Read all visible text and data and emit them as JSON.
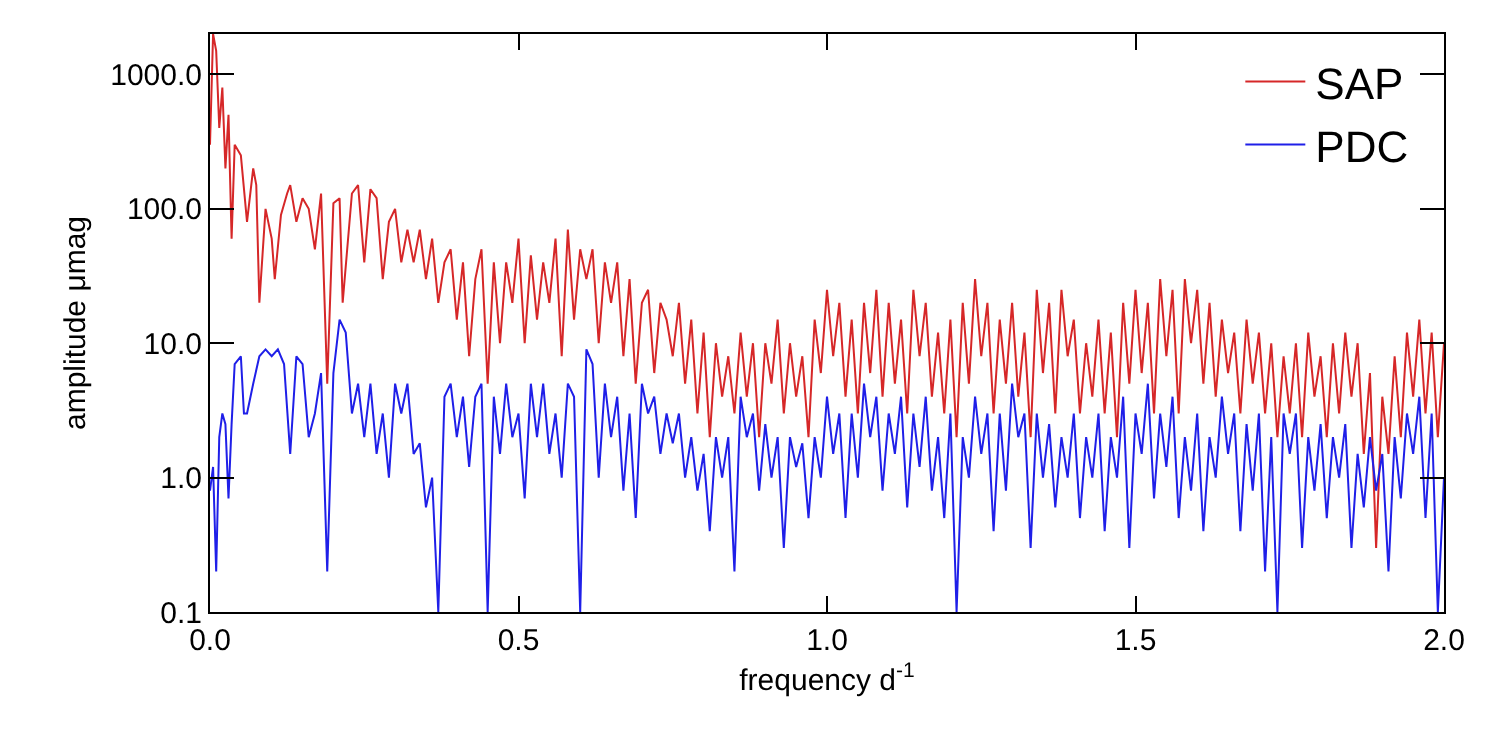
{
  "chart_data": {
    "type": "line",
    "xlabel": "frequency d$^{-1}$",
    "ylabel": "amplitude μmag",
    "log": "y",
    "grid": false,
    "legend": "top right",
    "marker": "none",
    "line_style": "solid",
    "xlim": [
      0,
      2
    ],
    "xticks": [
      {
        "value": 0,
        "label": "0.0"
      },
      {
        "value": 0.5,
        "label": "0.5"
      },
      {
        "value": 1,
        "label": "1.0"
      },
      {
        "value": 1.5,
        "label": "1.5"
      },
      {
        "value": 2,
        "label": "2.0"
      }
    ],
    "ylim": [
      0.1,
      2000
    ],
    "yticks": [
      {
        "value": 0.1,
        "label": "0.1"
      },
      {
        "value": 1,
        "label": "1.0"
      },
      {
        "value": 10,
        "label": "10.0"
      },
      {
        "value": 100,
        "label": "100.0"
      },
      {
        "value": 1000,
        "label": "1000.0"
      }
    ],
    "series": [
      {
        "name": "SAP",
        "color": "#d62728",
        "x": [
          0,
          0.005,
          0.01,
          0.015,
          0.02,
          0.025,
          0.03,
          0.035,
          0.04,
          0.05,
          0.06,
          0.07,
          0.075,
          0.08,
          0.09,
          0.1,
          0.105,
          0.115,
          0.125,
          0.13,
          0.14,
          0.15,
          0.16,
          0.17,
          0.18,
          0.19,
          0.2,
          0.21,
          0.215,
          0.23,
          0.24,
          0.25,
          0.26,
          0.27,
          0.28,
          0.29,
          0.3,
          0.31,
          0.32,
          0.33,
          0.34,
          0.35,
          0.36,
          0.37,
          0.38,
          0.39,
          0.4,
          0.41,
          0.42,
          0.43,
          0.44,
          0.45,
          0.46,
          0.47,
          0.48,
          0.49,
          0.5,
          0.51,
          0.52,
          0.53,
          0.54,
          0.55,
          0.56,
          0.57,
          0.58,
          0.59,
          0.6,
          0.61,
          0.62,
          0.63,
          0.64,
          0.65,
          0.66,
          0.67,
          0.68,
          0.69,
          0.7,
          0.71,
          0.72,
          0.73,
          0.74,
          0.75,
          0.76,
          0.77,
          0.78,
          0.79,
          0.8,
          0.81,
          0.82,
          0.83,
          0.84,
          0.85,
          0.86,
          0.87,
          0.88,
          0.89,
          0.9,
          0.91,
          0.92,
          0.93,
          0.94,
          0.95,
          0.96,
          0.97,
          0.98,
          0.99,
          1.0,
          1.01,
          1.02,
          1.03,
          1.04,
          1.05,
          1.06,
          1.07,
          1.08,
          1.09,
          1.1,
          1.11,
          1.12,
          1.13,
          1.14,
          1.15,
          1.16,
          1.17,
          1.18,
          1.19,
          1.2,
          1.21,
          1.22,
          1.23,
          1.24,
          1.25,
          1.26,
          1.27,
          1.28,
          1.29,
          1.3,
          1.31,
          1.32,
          1.33,
          1.34,
          1.35,
          1.36,
          1.37,
          1.38,
          1.39,
          1.4,
          1.41,
          1.42,
          1.43,
          1.44,
          1.45,
          1.46,
          1.47,
          1.48,
          1.49,
          1.5,
          1.51,
          1.52,
          1.53,
          1.54,
          1.55,
          1.56,
          1.57,
          1.58,
          1.59,
          1.6,
          1.61,
          1.62,
          1.63,
          1.64,
          1.65,
          1.66,
          1.67,
          1.68,
          1.69,
          1.7,
          1.71,
          1.72,
          1.73,
          1.74,
          1.75,
          1.76,
          1.77,
          1.78,
          1.79,
          1.8,
          1.81,
          1.82,
          1.83,
          1.84,
          1.85,
          1.86,
          1.87,
          1.88,
          1.89,
          1.9,
          1.91,
          1.92,
          1.93,
          1.94,
          1.95,
          1.96,
          1.97,
          1.98,
          1.99,
          2.0
        ],
        "values": [
          300,
          2000,
          1500,
          400,
          800,
          200,
          500,
          60,
          300,
          250,
          80,
          200,
          150,
          20,
          100,
          60,
          30,
          90,
          130,
          150,
          80,
          120,
          100,
          50,
          130,
          5,
          110,
          120,
          20,
          130,
          150,
          40,
          140,
          120,
          30,
          80,
          100,
          40,
          70,
          40,
          70,
          30,
          60,
          20,
          40,
          50,
          15,
          40,
          8,
          30,
          50,
          5,
          40,
          10,
          40,
          20,
          60,
          10,
          45,
          15,
          40,
          20,
          60,
          8,
          70,
          15,
          50,
          30,
          50,
          10,
          40,
          20,
          40,
          8,
          30,
          5,
          20,
          25,
          6,
          20,
          15,
          8,
          20,
          5,
          15,
          3,
          12,
          2,
          10,
          4,
          8,
          3,
          12,
          4,
          10,
          2,
          10,
          5,
          15,
          3,
          10,
          4,
          8,
          2,
          15,
          6,
          25,
          8,
          20,
          4,
          15,
          3,
          20,
          6,
          25,
          4,
          20,
          5,
          15,
          3,
          25,
          8,
          20,
          4,
          12,
          3,
          15,
          2,
          20,
          5,
          30,
          8,
          20,
          3,
          15,
          5,
          20,
          4,
          12,
          2,
          25,
          6,
          20,
          3,
          25,
          8,
          15,
          3,
          10,
          4,
          15,
          3,
          12,
          2,
          20,
          5,
          25,
          6,
          20,
          3,
          30,
          8,
          25,
          3,
          30,
          10,
          25,
          5,
          20,
          4,
          15,
          6,
          12,
          3,
          15,
          5,
          12,
          3,
          10,
          2,
          8,
          3,
          10,
          2,
          12,
          4,
          8,
          2,
          10,
          3,
          12,
          4,
          10,
          1.5,
          6,
          0.3,
          4,
          1.5,
          8,
          2,
          12,
          4,
          15,
          3,
          12,
          2,
          10
        ]
      },
      {
        "name": "PDC",
        "color": "#1f1fe8",
        "x": [
          0,
          0.005,
          0.01,
          0.015,
          0.02,
          0.025,
          0.03,
          0.035,
          0.04,
          0.05,
          0.055,
          0.06,
          0.07,
          0.08,
          0.09,
          0.1,
          0.11,
          0.12,
          0.13,
          0.14,
          0.15,
          0.16,
          0.17,
          0.18,
          0.19,
          0.2,
          0.21,
          0.22,
          0.23,
          0.24,
          0.25,
          0.26,
          0.27,
          0.28,
          0.29,
          0.3,
          0.31,
          0.32,
          0.33,
          0.34,
          0.35,
          0.36,
          0.37,
          0.38,
          0.39,
          0.4,
          0.41,
          0.42,
          0.43,
          0.44,
          0.45,
          0.46,
          0.47,
          0.48,
          0.49,
          0.5,
          0.51,
          0.52,
          0.53,
          0.54,
          0.55,
          0.56,
          0.57,
          0.58,
          0.59,
          0.6,
          0.61,
          0.62,
          0.63,
          0.64,
          0.65,
          0.66,
          0.67,
          0.68,
          0.69,
          0.7,
          0.71,
          0.72,
          0.73,
          0.74,
          0.75,
          0.76,
          0.77,
          0.78,
          0.79,
          0.8,
          0.81,
          0.82,
          0.83,
          0.84,
          0.85,
          0.86,
          0.87,
          0.88,
          0.89,
          0.9,
          0.91,
          0.92,
          0.93,
          0.94,
          0.95,
          0.96,
          0.97,
          0.98,
          0.99,
          1.0,
          1.01,
          1.02,
          1.03,
          1.04,
          1.05,
          1.06,
          1.07,
          1.08,
          1.09,
          1.1,
          1.11,
          1.12,
          1.13,
          1.14,
          1.15,
          1.16,
          1.17,
          1.18,
          1.19,
          1.2,
          1.21,
          1.22,
          1.23,
          1.24,
          1.25,
          1.26,
          1.27,
          1.28,
          1.29,
          1.3,
          1.31,
          1.32,
          1.33,
          1.34,
          1.35,
          1.36,
          1.37,
          1.38,
          1.39,
          1.4,
          1.41,
          1.42,
          1.43,
          1.44,
          1.45,
          1.46,
          1.47,
          1.48,
          1.49,
          1.5,
          1.51,
          1.52,
          1.53,
          1.54,
          1.55,
          1.56,
          1.57,
          1.58,
          1.59,
          1.6,
          1.61,
          1.62,
          1.63,
          1.64,
          1.65,
          1.66,
          1.67,
          1.68,
          1.69,
          1.7,
          1.71,
          1.72,
          1.73,
          1.74,
          1.75,
          1.76,
          1.77,
          1.78,
          1.79,
          1.8,
          1.81,
          1.82,
          1.83,
          1.84,
          1.85,
          1.86,
          1.87,
          1.88,
          1.89,
          1.9,
          1.91,
          1.92,
          1.93,
          1.94,
          1.95,
          1.96,
          1.97,
          1.98,
          1.99,
          2.0
        ],
        "values": [
          0.8,
          1.2,
          0.2,
          2,
          3,
          2.5,
          0.7,
          2.5,
          7,
          8,
          3,
          3,
          5,
          8,
          9,
          8,
          9,
          7,
          1.5,
          8,
          7,
          2,
          3,
          6,
          0.2,
          6,
          15,
          12,
          3,
          5,
          2,
          5,
          1.5,
          3,
          1,
          5,
          3,
          5,
          1.5,
          1.8,
          0.6,
          1,
          0.1,
          4,
          5,
          2,
          4,
          1.2,
          4,
          5,
          0.1,
          4,
          1.5,
          5,
          2,
          3,
          0.7,
          5,
          2,
          5,
          1.5,
          3,
          1,
          5,
          4,
          0.1,
          9,
          7,
          1,
          5,
          2,
          4,
          0.8,
          3,
          0.5,
          5,
          3,
          4,
          1.5,
          3,
          1.8,
          3,
          1,
          2,
          0.8,
          1.5,
          0.4,
          2,
          1,
          2,
          0.2,
          4,
          2,
          3,
          0.8,
          2.5,
          1,
          2,
          0.3,
          2,
          1.2,
          1.8,
          0.5,
          2,
          1,
          4,
          1.5,
          3,
          0.5,
          3,
          1,
          5,
          2,
          4,
          0.8,
          3,
          1.5,
          4,
          0.6,
          3,
          1.2,
          4,
          0.8,
          2,
          0.5,
          3,
          0.1,
          2,
          1,
          4,
          1.5,
          3,
          0.4,
          3,
          0.8,
          5,
          2,
          3,
          0.3,
          3,
          1,
          2.5,
          0.6,
          2,
          1,
          3,
          0.5,
          2,
          1,
          3,
          0.4,
          2,
          1,
          4,
          0.3,
          3,
          1.5,
          5,
          0.7,
          3,
          1.2,
          4,
          0.5,
          2,
          0.8,
          3,
          0.4,
          2,
          1,
          4,
          1.5,
          3,
          0.4,
          2.5,
          0.8,
          3,
          0.2,
          2,
          0.1,
          3,
          1.5,
          3,
          0.3,
          2,
          0.8,
          2.5,
          0.5,
          2,
          1,
          2.5,
          0.3,
          1.5,
          0.6,
          2,
          0.8,
          1.5,
          0.2,
          2,
          0.7,
          3,
          1.5,
          4,
          0.5,
          3,
          0.1,
          1
        ]
      }
    ]
  }
}
